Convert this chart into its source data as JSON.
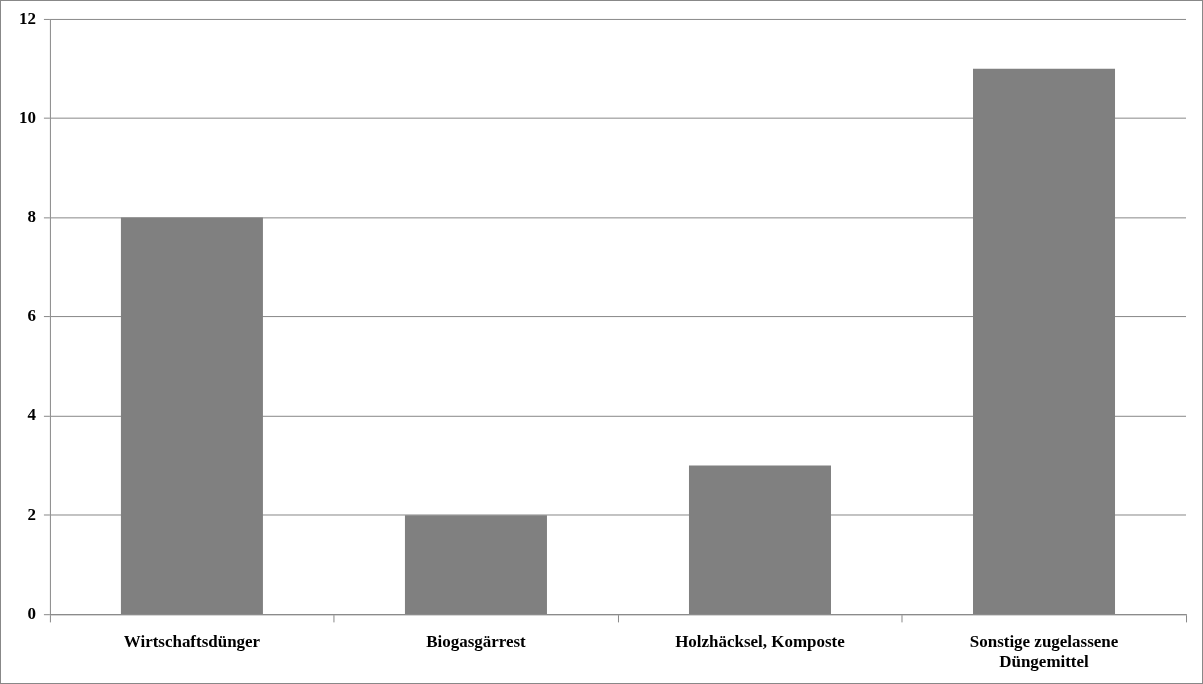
{
  "chart_data": {
    "type": "bar",
    "categories": [
      "Wirtschaftsdünger",
      "Biogasgärrest",
      "Holzhäcksel, Komposte",
      "Sonstige zugelassene Düngemittel"
    ],
    "values": [
      8,
      2,
      3,
      11
    ],
    "color": "#808080",
    "ylim": [
      0,
      12
    ],
    "yticks": [
      0,
      2,
      4,
      6,
      8,
      10,
      12
    ],
    "grid": "y",
    "legend": false
  }
}
